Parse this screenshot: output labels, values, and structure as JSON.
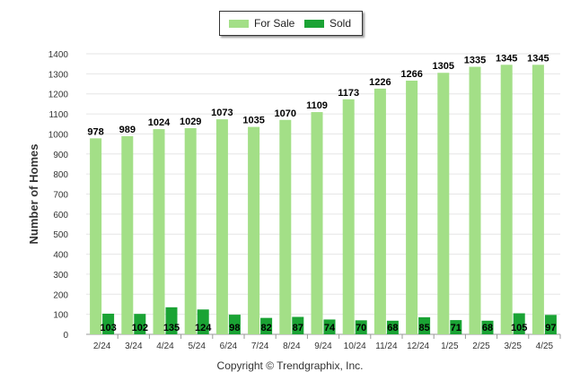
{
  "chart_data": {
    "type": "bar",
    "ylabel": "Number of Homes",
    "xlabel": "",
    "ylim": [
      0,
      1400
    ],
    "yticks": [
      0,
      100,
      200,
      300,
      400,
      500,
      600,
      700,
      800,
      900,
      1000,
      1100,
      1200,
      1300,
      1400
    ],
    "grid": true,
    "legend_position": "top-center",
    "categories": [
      "2/24",
      "3/24",
      "4/24",
      "5/24",
      "6/24",
      "7/24",
      "8/24",
      "9/24",
      "10/24",
      "11/24",
      "12/24",
      "1/25",
      "2/25",
      "3/25",
      "4/25"
    ],
    "series": [
      {
        "name": "For Sale",
        "color": "#a3df87",
        "values": [
          978,
          989,
          1024,
          1029,
          1073,
          1035,
          1070,
          1109,
          1173,
          1226,
          1266,
          1305,
          1335,
          1345,
          1345
        ]
      },
      {
        "name": "Sold",
        "color": "#1aa334",
        "values": [
          103,
          102,
          135,
          124,
          98,
          82,
          87,
          74,
          70,
          68,
          85,
          71,
          68,
          105,
          97
        ]
      }
    ]
  },
  "legend": {
    "items": [
      {
        "label": "For Sale",
        "color": "#a3df87"
      },
      {
        "label": "Sold",
        "color": "#1aa334"
      }
    ]
  },
  "footer": {
    "copyright": "Copyright © Trendgraphix, Inc."
  }
}
